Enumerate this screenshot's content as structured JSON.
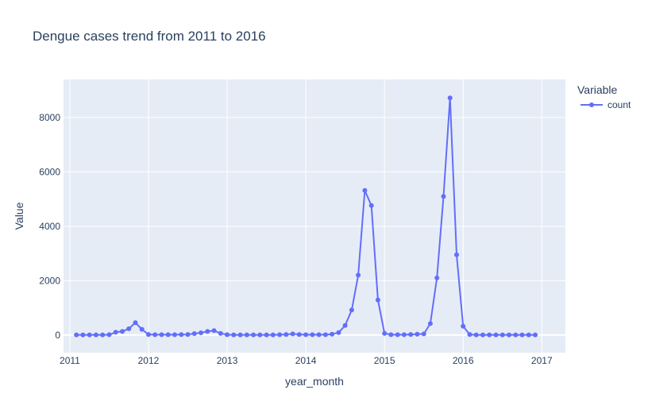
{
  "chart_data": {
    "type": "line",
    "title": "Dengue cases trend from 2011 to 2016",
    "xlabel": "year_month",
    "ylabel": "Value",
    "legend_title": "Variable",
    "legend_placement": "top-right",
    "grid": true,
    "x_ticks": [
      "2011",
      "2012",
      "2013",
      "2014",
      "2015",
      "2016",
      "2017"
    ],
    "y_ticks": [
      "0",
      "2000",
      "4000",
      "6000",
      "8000"
    ],
    "xlim": [
      2010.92,
      2017.3
    ],
    "ylim": [
      -650,
      9400
    ],
    "series": [
      {
        "name": "count",
        "color": "#636efa",
        "x": [
          "2011-02",
          "2011-03",
          "2011-04",
          "2011-05",
          "2011-06",
          "2011-07",
          "2011-08",
          "2011-09",
          "2011-10",
          "2011-11",
          "2011-12",
          "2012-01",
          "2012-02",
          "2012-03",
          "2012-04",
          "2012-05",
          "2012-06",
          "2012-07",
          "2012-08",
          "2012-09",
          "2012-10",
          "2012-11",
          "2012-12",
          "2013-01",
          "2013-02",
          "2013-03",
          "2013-04",
          "2013-05",
          "2013-06",
          "2013-07",
          "2013-08",
          "2013-09",
          "2013-10",
          "2013-11",
          "2013-12",
          "2014-01",
          "2014-02",
          "2014-03",
          "2014-04",
          "2014-05",
          "2014-06",
          "2014-07",
          "2014-08",
          "2014-09",
          "2014-10",
          "2014-11",
          "2014-12",
          "2015-01",
          "2015-02",
          "2015-03",
          "2015-04",
          "2015-05",
          "2015-06",
          "2015-07",
          "2015-08",
          "2015-09",
          "2015-10",
          "2015-11",
          "2015-12",
          "2016-01",
          "2016-02",
          "2016-03",
          "2016-04",
          "2016-05",
          "2016-06",
          "2016-07",
          "2016-08",
          "2016-09",
          "2016-10",
          "2016-11",
          "2016-12"
        ],
        "values": [
          5,
          5,
          5,
          5,
          5,
          10,
          100,
          130,
          230,
          450,
          210,
          20,
          10,
          10,
          10,
          10,
          15,
          20,
          50,
          80,
          130,
          160,
          60,
          10,
          5,
          5,
          5,
          5,
          5,
          5,
          5,
          10,
          20,
          40,
          20,
          10,
          10,
          10,
          10,
          30,
          90,
          350,
          920,
          2200,
          5320,
          4760,
          1290,
          60,
          10,
          10,
          10,
          20,
          30,
          40,
          420,
          2100,
          5100,
          8720,
          2950,
          320,
          20,
          5,
          5,
          5,
          5,
          5,
          5,
          5,
          5,
          5,
          5
        ]
      }
    ]
  }
}
